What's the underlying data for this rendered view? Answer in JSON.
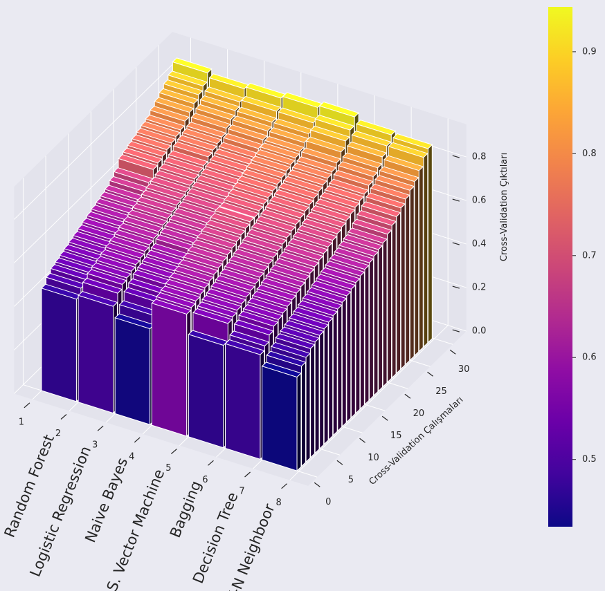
{
  "chart_data": {
    "type": "bar3d",
    "categories": [
      "Random Forest",
      "Logistic Regression",
      "Naive Bayes",
      "S. Vector Machine",
      "Bagging",
      "Decision Tree",
      "K-N Neighboor"
    ],
    "values": [
      [
        0.47,
        0.5,
        0.52,
        0.53,
        0.54,
        0.55,
        0.56,
        0.57,
        0.58,
        0.59,
        0.6,
        0.61,
        0.62,
        0.63,
        0.64,
        0.66,
        0.68,
        0.72,
        0.73,
        0.74,
        0.75,
        0.76,
        0.77,
        0.78,
        0.8,
        0.82,
        0.84,
        0.86,
        0.88,
        0.92
      ],
      [
        0.49,
        0.53,
        0.55,
        0.56,
        0.57,
        0.58,
        0.59,
        0.6,
        0.61,
        0.62,
        0.63,
        0.64,
        0.65,
        0.66,
        0.67,
        0.68,
        0.69,
        0.7,
        0.71,
        0.72,
        0.73,
        0.75,
        0.76,
        0.77,
        0.78,
        0.8,
        0.82,
        0.84,
        0.86,
        0.9
      ],
      [
        0.44,
        0.48,
        0.52,
        0.54,
        0.56,
        0.57,
        0.58,
        0.59,
        0.6,
        0.62,
        0.63,
        0.64,
        0.65,
        0.66,
        0.67,
        0.68,
        0.69,
        0.7,
        0.71,
        0.72,
        0.73,
        0.74,
        0.75,
        0.76,
        0.78,
        0.8,
        0.82,
        0.84,
        0.87,
        0.91
      ],
      [
        0.56,
        0.57,
        0.58,
        0.59,
        0.6,
        0.61,
        0.62,
        0.63,
        0.64,
        0.65,
        0.66,
        0.67,
        0.68,
        0.69,
        0.7,
        0.7,
        0.71,
        0.72,
        0.73,
        0.74,
        0.75,
        0.76,
        0.77,
        0.78,
        0.79,
        0.8,
        0.82,
        0.84,
        0.87,
        0.92
      ],
      [
        0.47,
        0.55,
        0.56,
        0.57,
        0.58,
        0.59,
        0.6,
        0.61,
        0.62,
        0.63,
        0.64,
        0.65,
        0.66,
        0.67,
        0.68,
        0.69,
        0.7,
        0.71,
        0.72,
        0.73,
        0.74,
        0.75,
        0.76,
        0.77,
        0.78,
        0.8,
        0.83,
        0.86,
        0.89,
        0.93
      ],
      [
        0.48,
        0.5,
        0.53,
        0.55,
        0.56,
        0.57,
        0.58,
        0.59,
        0.6,
        0.61,
        0.62,
        0.63,
        0.64,
        0.65,
        0.66,
        0.67,
        0.68,
        0.69,
        0.7,
        0.71,
        0.72,
        0.73,
        0.74,
        0.75,
        0.77,
        0.79,
        0.81,
        0.84,
        0.87,
        0.9
      ],
      [
        0.43,
        0.46,
        0.48,
        0.5,
        0.51,
        0.52,
        0.53,
        0.54,
        0.55,
        0.56,
        0.57,
        0.58,
        0.59,
        0.6,
        0.61,
        0.62,
        0.63,
        0.64,
        0.65,
        0.66,
        0.68,
        0.7,
        0.72,
        0.74,
        0.76,
        0.78,
        0.8,
        0.83,
        0.87,
        0.89
      ]
    ],
    "xticks": [
      1,
      2,
      3,
      4,
      5,
      6,
      7,
      8
    ],
    "xlim": [
      0.5,
      8.5
    ],
    "yticks": [
      0,
      5,
      10,
      15,
      20,
      25,
      30
    ],
    "ylim": [
      -2,
      33
    ],
    "zticks": [
      {
        "value": 0,
        "label": "0.0"
      },
      {
        "value": 0.2,
        "label": "0.2"
      },
      {
        "value": 0.4,
        "label": "0.4"
      },
      {
        "value": 0.6,
        "label": "0.6"
      },
      {
        "value": 0.8,
        "label": "0.8"
      }
    ],
    "zlim": [
      0,
      0.95
    ],
    "ylabel": "Cross-Validation Çalışmaları",
    "zlabel": "Cross-Validation Çıktıları",
    "colormap": "plasma",
    "clim": [
      0.434,
      0.944
    ],
    "cticks": [
      0.5,
      0.6,
      0.7,
      0.8,
      0.9
    ],
    "grid": true
  }
}
